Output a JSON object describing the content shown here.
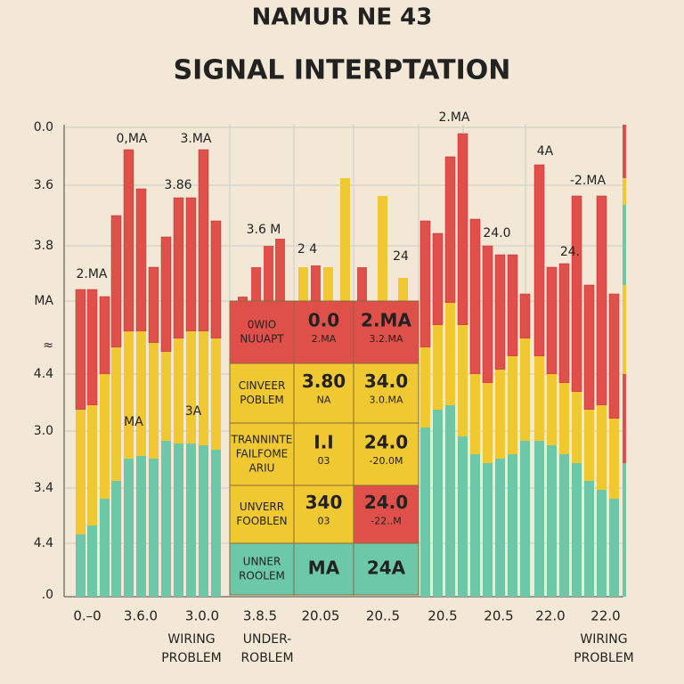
{
  "header": {
    "title": "NAMUR NE 43",
    "subtitle": "SIGNAL INTERPTATION"
  },
  "y_labels": [
    "0.0",
    "3.6",
    "3.8",
    "MA",
    "≈",
    "4.4",
    "3.0",
    "3.4",
    "4.4",
    ".0"
  ],
  "x_labels": [
    "0.–0",
    "3.6.0",
    "3.0.0",
    "3.8.5",
    "20.05",
    "20..5",
    "20.5",
    "20.5",
    "22.0",
    "22.0"
  ],
  "x_notes": [
    [
      "WIRING",
      "PROBLEM"
    ],
    [
      "UNDER-",
      "ROBLEM"
    ],
    [
      "WIRING",
      "PROBLEM"
    ]
  ],
  "bar_labels": [
    "0,MA",
    "3.MA",
    "3.86",
    "2.MA",
    "MA",
    "3A",
    "3.6 M",
    "2.MA",
    "2 4",
    "24",
    "24.0",
    "4A",
    "-2.MA",
    "24."
  ],
  "table": {
    "rows": [
      [
        [
          "0WIO",
          "NUUAPT"
        ],
        [
          "0.0",
          "2.MA"
        ],
        [
          "2.MA",
          "3.2.MA"
        ]
      ],
      [
        [
          "CINVEER",
          "POBLEM"
        ],
        [
          "3.80",
          "NA"
        ],
        [
          "34.0",
          "3.0.MA"
        ]
      ],
      [
        [
          "TRANNINTE",
          "FAILFOME",
          "ARIU"
        ],
        [
          "I.I",
          "03"
        ],
        [
          "24.0",
          "-20.0M"
        ]
      ],
      [
        [
          "UNVERR",
          "FOOBLEN"
        ],
        [
          "340",
          "03"
        ],
        [
          "24.0",
          "-22..M"
        ]
      ],
      [
        [
          "UNNER",
          "ROOLEM"
        ],
        [
          "MA"
        ],
        [
          "24A"
        ]
      ]
    ]
  }
}
